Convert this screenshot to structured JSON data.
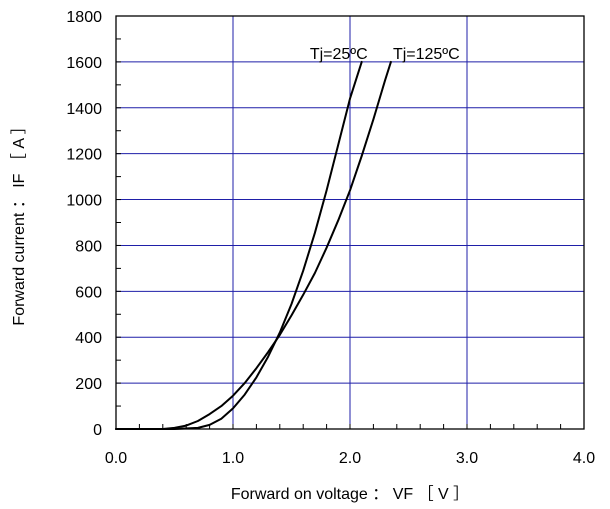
{
  "chart_data": {
    "type": "line",
    "xlabel": "Forward on voltage ： VF ［ V ］",
    "ylabel": "Forward current ： IF ［ A ］",
    "xlim": [
      0.0,
      4.0
    ],
    "ylim": [
      0,
      1800
    ],
    "x_ticks": [
      "0.0",
      "1.0",
      "2.0",
      "3.0",
      "4.0"
    ],
    "y_ticks": [
      "0",
      "200",
      "400",
      "600",
      "800",
      "1000",
      "1200",
      "1400",
      "1600",
      "1800"
    ],
    "grid": true,
    "series": [
      {
        "name": "Tj=25ºC",
        "x": [
          0.0,
          0.5,
          0.7,
          0.8,
          0.9,
          1.0,
          1.1,
          1.2,
          1.3,
          1.4,
          1.5,
          1.6,
          1.7,
          1.8,
          1.9,
          2.0,
          2.1
        ],
        "y": [
          0,
          0,
          5,
          18,
          45,
          90,
          150,
          225,
          315,
          420,
          545,
          690,
          855,
          1040,
          1240,
          1440,
          1600
        ]
      },
      {
        "name": "Tj=125ºC",
        "x": [
          0.0,
          0.4,
          0.5,
          0.6,
          0.7,
          0.8,
          0.9,
          1.0,
          1.1,
          1.2,
          1.3,
          1.4,
          1.5,
          1.6,
          1.7,
          1.8,
          1.9,
          2.0,
          2.1,
          2.2,
          2.3,
          2.35
        ],
        "y": [
          0,
          0,
          5,
          15,
          35,
          65,
          100,
          145,
          200,
          265,
          335,
          410,
          495,
          585,
          680,
          790,
          910,
          1040,
          1190,
          1350,
          1520,
          1600
        ]
      }
    ]
  }
}
